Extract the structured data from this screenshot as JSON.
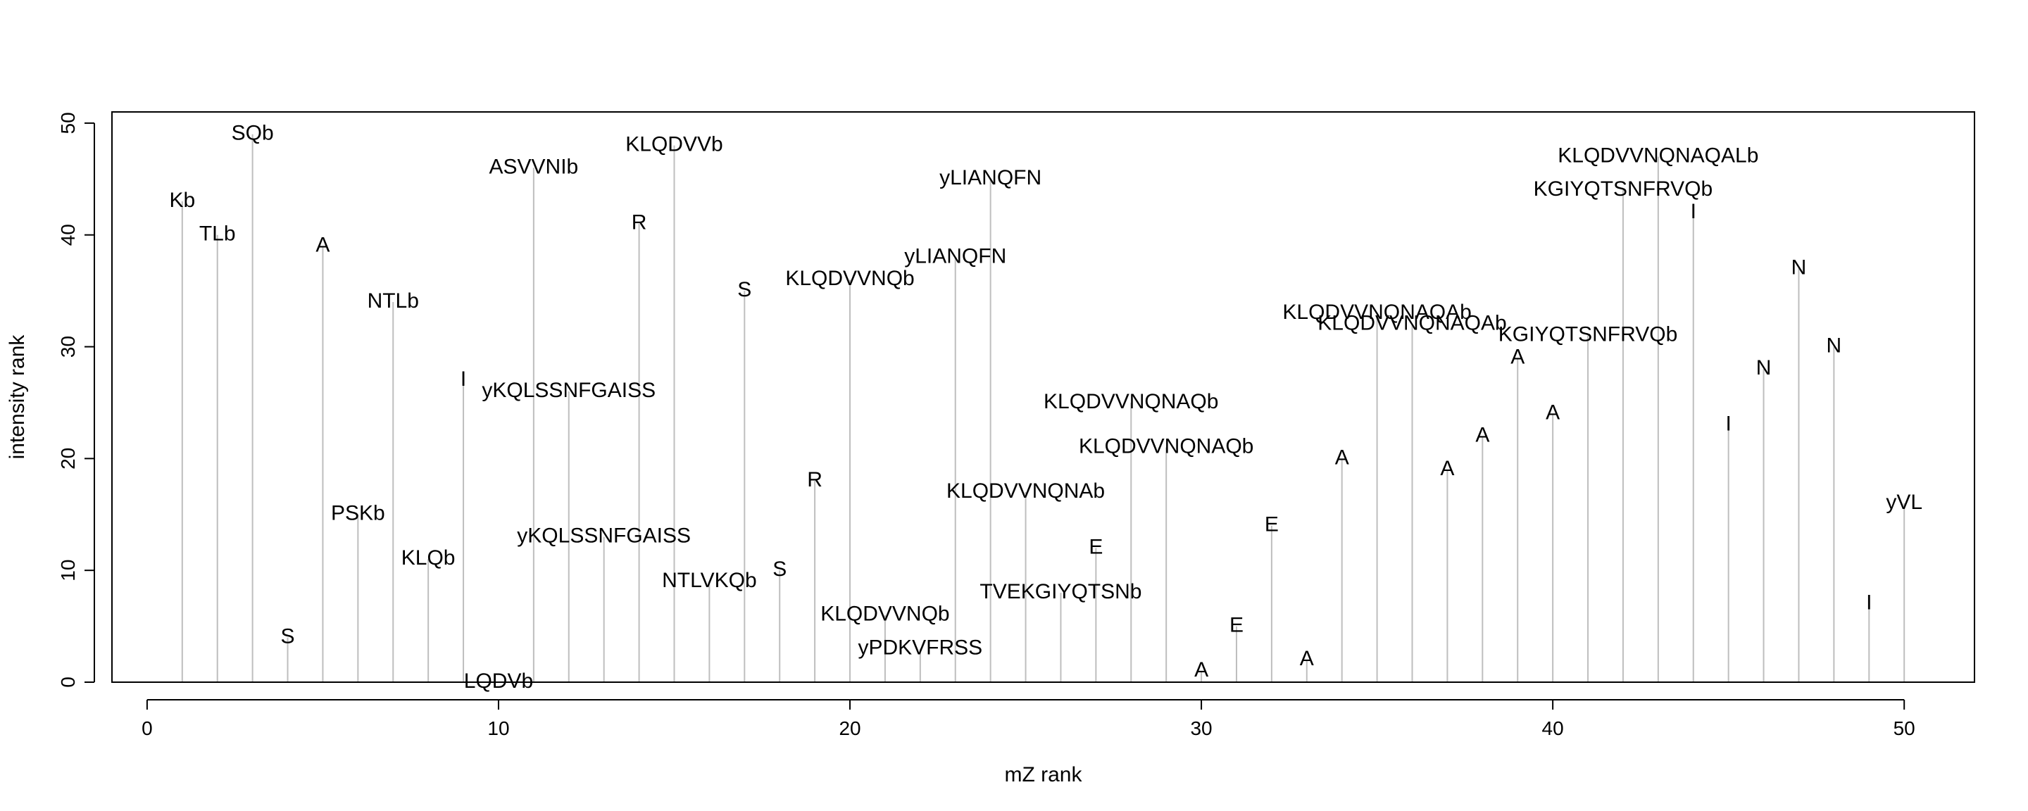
{
  "chart_data": {
    "type": "bar",
    "xlabel": "mZ rank",
    "ylabel": "intensity rank",
    "xlim": [
      -1,
      52
    ],
    "ylim": [
      0,
      51
    ],
    "xticks": [
      0,
      10,
      20,
      30,
      40,
      50
    ],
    "yticks": [
      0,
      10,
      20,
      30,
      40,
      50
    ],
    "points": [
      {
        "x": 1,
        "y": 43,
        "label": "Kb"
      },
      {
        "x": 2,
        "y": 40,
        "label": "TLb"
      },
      {
        "x": 3,
        "y": 49,
        "label": "SQb"
      },
      {
        "x": 4,
        "y": 4,
        "label": "S"
      },
      {
        "x": 5,
        "y": 39,
        "label": "A"
      },
      {
        "x": 6,
        "y": 15,
        "label": "PSKb"
      },
      {
        "x": 7,
        "y": 34,
        "label": "NTLb"
      },
      {
        "x": 8,
        "y": 11,
        "label": "KLQb"
      },
      {
        "x": 9,
        "y": 27,
        "label": "I"
      },
      {
        "x": 10,
        "y": 0,
        "label": "LQDVb"
      },
      {
        "x": 11,
        "y": 46,
        "label": "ASVVNIb"
      },
      {
        "x": 12,
        "y": 26,
        "label": "yKQLSSNFGAISS"
      },
      {
        "x": 13,
        "y": 13,
        "label": "yKQLSSNFGAISS"
      },
      {
        "x": 14,
        "y": 41,
        "label": "R"
      },
      {
        "x": 15,
        "y": 48,
        "label": "KLQDVVb"
      },
      {
        "x": 16,
        "y": 9,
        "label": "NTLVKQb"
      },
      {
        "x": 17,
        "y": 35,
        "label": "S"
      },
      {
        "x": 18,
        "y": 10,
        "label": "S"
      },
      {
        "x": 19,
        "y": 18,
        "label": "R"
      },
      {
        "x": 20,
        "y": 36,
        "label": "KLQDVVNQb"
      },
      {
        "x": 21,
        "y": 6,
        "label": "KLQDVVNQb"
      },
      {
        "x": 22,
        "y": 3,
        "label": "yPDKVFRSS"
      },
      {
        "x": 23,
        "y": 38,
        "label": "yLIANQFN"
      },
      {
        "x": 24,
        "y": 45,
        "label": "yLIANQFN"
      },
      {
        "x": 25,
        "y": 17,
        "label": "KLQDVVNQNAb"
      },
      {
        "x": 26,
        "y": 8,
        "label": "TVEKGIYQTSNb"
      },
      {
        "x": 27,
        "y": 12,
        "label": "E"
      },
      {
        "x": 28,
        "y": 25,
        "label": "KLQDVVNQNAQb"
      },
      {
        "x": 29,
        "y": 21,
        "label": "KLQDVVNQNAQb"
      },
      {
        "x": 30,
        "y": 1,
        "label": "A"
      },
      {
        "x": 31,
        "y": 5,
        "label": "E"
      },
      {
        "x": 32,
        "y": 14,
        "label": "E"
      },
      {
        "x": 33,
        "y": 2,
        "label": "A"
      },
      {
        "x": 34,
        "y": 20,
        "label": "A"
      },
      {
        "x": 35,
        "y": 33,
        "label": "KLQDVVNQNAQAb"
      },
      {
        "x": 36,
        "y": 32,
        "label": "KLQDVVNQNAQAb"
      },
      {
        "x": 37,
        "y": 19,
        "label": "A"
      },
      {
        "x": 38,
        "y": 22,
        "label": "A"
      },
      {
        "x": 39,
        "y": 29,
        "label": "A"
      },
      {
        "x": 40,
        "y": 24,
        "label": "A"
      },
      {
        "x": 41,
        "y": 31,
        "label": "KGIYQTSNFRVQb"
      },
      {
        "x": 42,
        "y": 44,
        "label": "KGIYQTSNFRVQb"
      },
      {
        "x": 43,
        "y": 47,
        "label": "KLQDVVNQNAQALb"
      },
      {
        "x": 44,
        "y": 42,
        "label": "I"
      },
      {
        "x": 45,
        "y": 23,
        "label": "I"
      },
      {
        "x": 46,
        "y": 28,
        "label": "N"
      },
      {
        "x": 47,
        "y": 37,
        "label": "N"
      },
      {
        "x": 48,
        "y": 30,
        "label": "N"
      },
      {
        "x": 49,
        "y": 7,
        "label": "I"
      },
      {
        "x": 50,
        "y": 16,
        "label": "yVL"
      }
    ]
  }
}
